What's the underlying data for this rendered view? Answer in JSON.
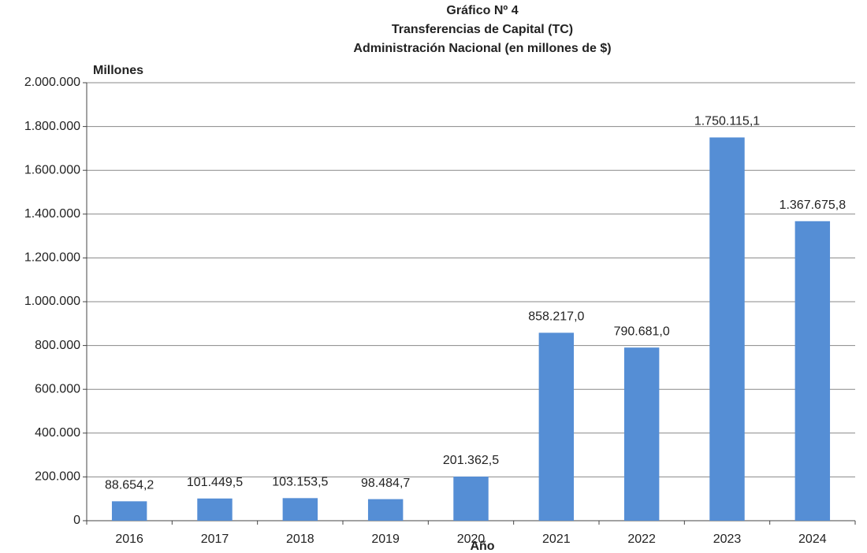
{
  "chart_data": {
    "type": "bar",
    "title": [
      "Gráfico Nº 4",
      "Transferencias de Capital (TC)",
      "Administración Nacional (en millones de $)"
    ],
    "y_label": "Millones",
    "x_label": "Año",
    "categories": [
      "2016",
      "2017",
      "2018",
      "2019",
      "2020",
      "2021",
      "2022",
      "2023",
      "2024"
    ],
    "values": [
      88654.2,
      101449.5,
      103153.5,
      98484.7,
      201362.5,
      858217.0,
      790681.0,
      1750115.1,
      1367675.8
    ],
    "value_labels": [
      "88.654,2",
      "101.449,5",
      "103.153,5",
      "98.484,7",
      "201.362,5",
      "858.217,0",
      "790.681,0",
      "1.750.115,1",
      "1.367.675,8"
    ],
    "color": "#558ed5",
    "ylim": [
      0,
      2000000
    ],
    "yticks": [
      0,
      {
        "value": 200000,
        "label": "200.000"
      },
      {
        "value": 400000,
        "label": "400.000"
      },
      {
        "value": 600000,
        "label": "600.000"
      },
      {
        "value": 800000,
        "label": "800.000"
      },
      {
        "value": 1000000,
        "label": "1.000.000"
      },
      {
        "value": 1200000,
        "label": "1.200.000"
      },
      {
        "value": 1400000,
        "label": "1.400.000"
      },
      {
        "value": 1600000,
        "label": "1.600.000"
      },
      {
        "value": 1800000,
        "label": "1.800.000"
      },
      {
        "value": 2000000,
        "label": "2.000.000"
      }
    ],
    "grid": true
  }
}
